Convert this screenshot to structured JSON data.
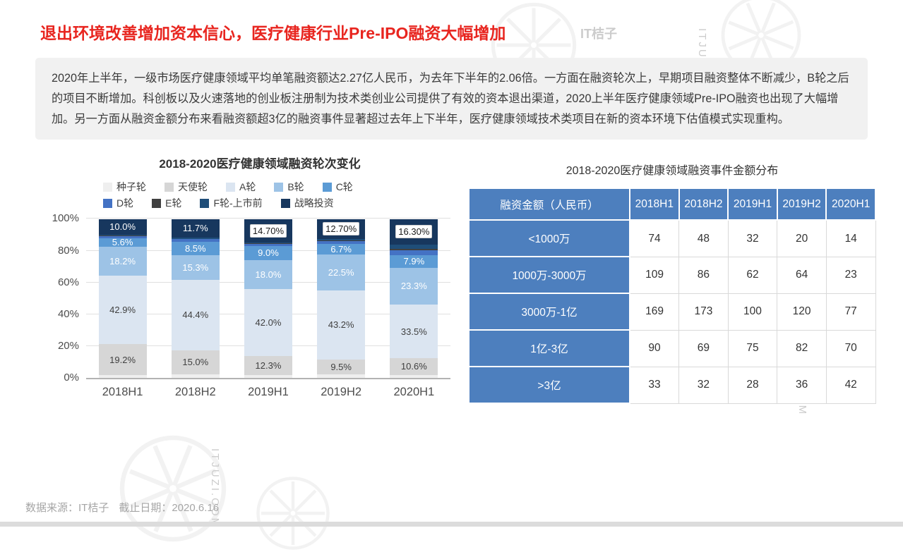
{
  "page": {
    "title": "退出环境改善增加资本信心，医疗健康行业Pre-IPO融资大幅增加",
    "summary": "2020年上半年，一级市场医疗健康领域平均单笔融资额达2.27亿人民币，为去年下半年的2.06倍。一方面在融资轮次上，早期项目融资整体不断减少，B轮之后的项目不断增加。科创板以及火速落地的创业板注册制为技术类创业公司提供了有效的资本退出渠道，2020上半年医疗健康领域Pre-IPO融资也出现了大幅增加。另一方面从融资金额分布来看融资额超3亿的融资事件显著超过去年上下半年，医疗健康领域技术类项目在新的资本环境下估值模式实现重构。",
    "footer_source": "数据来源：IT桔子",
    "footer_date": "截止日期：2020.6.16",
    "watermark_logo_text": "IT桔子",
    "watermark_domain_text": "ITJUZI.COM",
    "accent_red": "#e8251f",
    "table_blue": "#4d7fbe"
  },
  "chart_data": [
    {
      "type": "bar",
      "stacked": true,
      "title": "2018-2020医疗健康领域融资轮次变化",
      "categories": [
        "2018H1",
        "2018H2",
        "2019H1",
        "2019H2",
        "2020H1"
      ],
      "ylim": [
        0,
        100
      ],
      "y_ticks": [
        0,
        20,
        40,
        60,
        80,
        100
      ],
      "y_tick_labels": [
        "0%",
        "20%",
        "40%",
        "60%",
        "80%",
        "100%"
      ],
      "grid": true,
      "legend_position": "top",
      "series": [
        {
          "name": "种子轮",
          "color": "#efefef",
          "values": [
            2.1,
            2.5,
            1.8,
            2.4,
            2.0
          ],
          "labels": [
            "",
            "",
            "",
            "",
            ""
          ]
        },
        {
          "name": "天使轮",
          "color": "#d6d6d6",
          "values": [
            19.2,
            15.0,
            12.3,
            9.5,
            10.6
          ],
          "labels": [
            "19.2%",
            "15.0%",
            "12.3%",
            "9.5%",
            "10.6%"
          ],
          "label_color": "#404040"
        },
        {
          "name": "A轮",
          "color": "#dbe5f1",
          "values": [
            42.9,
            44.4,
            42.0,
            43.2,
            33.5
          ],
          "labels": [
            "42.9%",
            "44.4%",
            "42.0%",
            "43.2%",
            "33.5%"
          ],
          "label_color": "#404040"
        },
        {
          "name": "B轮",
          "color": "#9dc3e6",
          "values": [
            18.2,
            15.3,
            18.0,
            22.5,
            23.3
          ],
          "labels": [
            "18.2%",
            "15.3%",
            "18.0%",
            "22.5%",
            "23.3%"
          ],
          "label_color": "#ffffff"
        },
        {
          "name": "C轮",
          "color": "#5b9bd5",
          "values": [
            5.6,
            8.5,
            9.0,
            6.7,
            7.9
          ],
          "labels": [
            "5.6%",
            "8.5%",
            "9.0%",
            "6.7%",
            "7.9%"
          ],
          "label_color": "#ffffff"
        },
        {
          "name": "D轮",
          "color": "#4472c4",
          "values": [
            1.2,
            1.5,
            1.2,
            1.8,
            3.0
          ],
          "labels": [
            "",
            "",
            "",
            "",
            ""
          ]
        },
        {
          "name": "E轮",
          "color": "#404040",
          "values": [
            0.3,
            0.4,
            0.4,
            0.4,
            0.9
          ],
          "labels": [
            "",
            "",
            "",
            "",
            ""
          ]
        },
        {
          "name": "F轮-上市前",
          "color": "#1f4e79",
          "values": [
            0.5,
            0.7,
            0.6,
            0.8,
            2.5
          ],
          "labels": [
            "",
            "",
            "",
            "",
            ""
          ]
        },
        {
          "name": "战略投资",
          "color": "#17375e",
          "values": [
            10.0,
            11.7,
            14.7,
            12.7,
            16.3
          ],
          "labels": [
            "10.0%",
            "11.7%",
            "14.70%",
            "12.70%",
            "16.30%"
          ],
          "label_color": "#ffffff",
          "boxed": [
            false,
            false,
            true,
            true,
            true
          ]
        }
      ]
    },
    {
      "type": "table",
      "title": "2018-2020医疗健康领域融资事件金额分布",
      "header": [
        "融资金额（人民币）",
        "2018H1",
        "2018H2",
        "2019H1",
        "2019H2",
        "2020H1"
      ],
      "rows": [
        {
          "label": "<1000万",
          "values": [
            74,
            48,
            32,
            20,
            14
          ]
        },
        {
          "label": "1000万-3000万",
          "values": [
            109,
            86,
            62,
            64,
            23
          ]
        },
        {
          "label": "3000万-1亿",
          "values": [
            169,
            173,
            100,
            120,
            77
          ]
        },
        {
          "label": "1亿-3亿",
          "values": [
            90,
            69,
            75,
            82,
            70
          ]
        },
        {
          "label": ">3亿",
          "values": [
            33,
            32,
            28,
            36,
            42
          ]
        }
      ]
    }
  ]
}
